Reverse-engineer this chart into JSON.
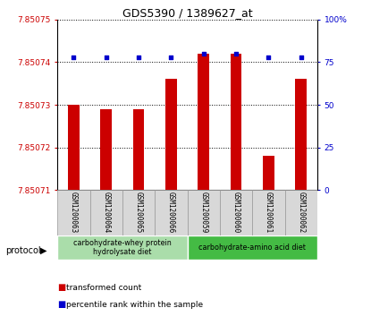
{
  "title": "GDS5390 / 1389627_at",
  "samples": [
    "GSM1200063",
    "GSM1200064",
    "GSM1200065",
    "GSM1200066",
    "GSM1200059",
    "GSM1200060",
    "GSM1200061",
    "GSM1200062"
  ],
  "red_values": [
    7.85073,
    7.850729,
    7.850729,
    7.850736,
    7.850742,
    7.850742,
    7.850718,
    7.850736
  ],
  "blue_values": [
    78,
    78,
    78,
    78,
    80,
    80,
    78,
    78
  ],
  "y_min": 7.85071,
  "y_max": 7.85075,
  "y_ticks": [
    7.85071,
    7.85072,
    7.85073,
    7.85074,
    7.85075
  ],
  "protocol_groups": [
    {
      "label": "carbohydrate-whey protein\nhydrolysate diet",
      "start": 0,
      "end": 4,
      "color": "#aaddaa"
    },
    {
      "label": "carbohydrate-amino acid diet",
      "start": 4,
      "end": 8,
      "color": "#44bb44"
    }
  ],
  "bar_color": "#cc0000",
  "dot_color": "#0000cc",
  "legend_items": [
    {
      "color": "#cc0000",
      "label": "transformed count"
    },
    {
      "color": "#0000cc",
      "label": "percentile rank within the sample"
    }
  ],
  "protocol_label": "protocol"
}
